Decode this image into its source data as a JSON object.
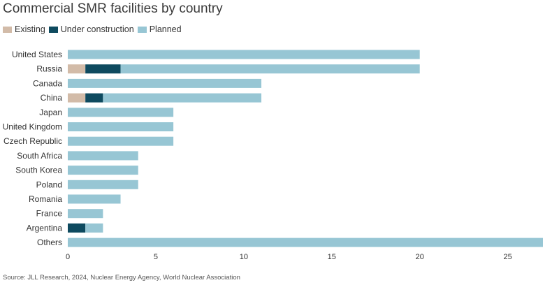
{
  "chart_data": {
    "type": "bar",
    "orientation": "horizontal",
    "stacked": true,
    "title": "Commercial SMR facilities by country",
    "categories": [
      "United States",
      "Russia",
      "Canada",
      "China",
      "Japan",
      "United Kingdom",
      "Czech Republic",
      "South Africa",
      "South Korea",
      "Poland",
      "Romania",
      "France",
      "Argentina",
      "Others"
    ],
    "series": [
      {
        "name": "Existing",
        "color": "#d2bba8",
        "values": [
          0,
          1,
          0,
          1,
          0,
          0,
          0,
          0,
          0,
          0,
          0,
          0,
          0,
          0
        ]
      },
      {
        "name": "Under construction",
        "color": "#0e4a5f",
        "values": [
          0,
          2,
          0,
          1,
          0,
          0,
          0,
          0,
          0,
          0,
          0,
          0,
          1,
          0
        ]
      },
      {
        "name": "Planned",
        "color": "#97c6d4",
        "values": [
          20,
          17,
          11,
          9,
          6,
          6,
          6,
          4,
          4,
          4,
          3,
          2,
          1,
          27
        ]
      }
    ],
    "xticks": [
      0,
      5,
      10,
      15,
      20,
      25
    ],
    "xlim": [
      0,
      27
    ],
    "grid": false,
    "legend_position": "top-left",
    "source": "Source: JLL Research, 2024, Nuclear Energy Agency, World Nuclear Association"
  }
}
